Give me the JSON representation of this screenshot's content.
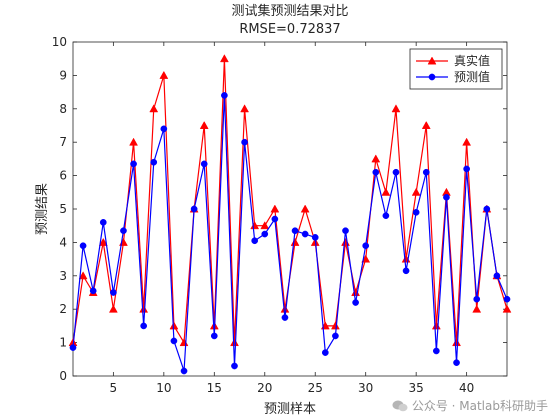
{
  "chart_data": {
    "type": "line",
    "title": "测试集预测结果对比",
    "subtitle": "RMSE=0.72837",
    "xlabel": "预测样本",
    "ylabel": "预测结果",
    "xlim": [
      1,
      44
    ],
    "ylim": [
      0,
      10
    ],
    "xticks": [
      5,
      10,
      15,
      20,
      25,
      30,
      35,
      40
    ],
    "yticks": [
      0,
      1,
      2,
      3,
      4,
      5,
      6,
      7,
      8,
      9,
      10
    ],
    "grid": false,
    "legend_position": "top-right",
    "x": [
      1,
      2,
      3,
      4,
      5,
      6,
      7,
      8,
      9,
      10,
      11,
      12,
      13,
      14,
      15,
      16,
      17,
      18,
      19,
      20,
      21,
      22,
      23,
      24,
      25,
      26,
      27,
      28,
      29,
      30,
      31,
      32,
      33,
      34,
      35,
      36,
      37,
      38,
      39,
      40,
      41,
      42,
      43,
      44
    ],
    "series": [
      {
        "name": "真实值",
        "color": "#ff0000",
        "marker": "triangle",
        "values": [
          1,
          3,
          2.5,
          4,
          2,
          4,
          7,
          2,
          8,
          9,
          1.5,
          1,
          5,
          7.5,
          1.5,
          9.5,
          1,
          8,
          4.5,
          4.5,
          5,
          2,
          4,
          5,
          4,
          1.5,
          1.5,
          4,
          2.5,
          3.5,
          6.5,
          5.5,
          8,
          3.5,
          5.5,
          7.5,
          1.5,
          5.5,
          1,
          7,
          2,
          5,
          3,
          2
        ]
      },
      {
        "name": "预测值",
        "color": "#0000ff",
        "marker": "circle",
        "values": [
          0.85,
          3.9,
          2.55,
          4.6,
          2.5,
          4.35,
          6.35,
          1.5,
          6.4,
          7.4,
          1.05,
          0.15,
          5,
          6.35,
          1.2,
          8.4,
          0.3,
          7,
          4.05,
          4.25,
          4.7,
          1.75,
          4.35,
          4.25,
          4.15,
          0.7,
          1.2,
          4.35,
          2.2,
          3.9,
          6.1,
          4.8,
          6.1,
          3.15,
          4.9,
          6.1,
          0.75,
          5.35,
          0.4,
          6.2,
          2.3,
          5,
          3,
          2.3
        ]
      }
    ]
  },
  "watermark": {
    "text": "公众号 · Matlab科研助手",
    "icon": "wechat-icon"
  }
}
